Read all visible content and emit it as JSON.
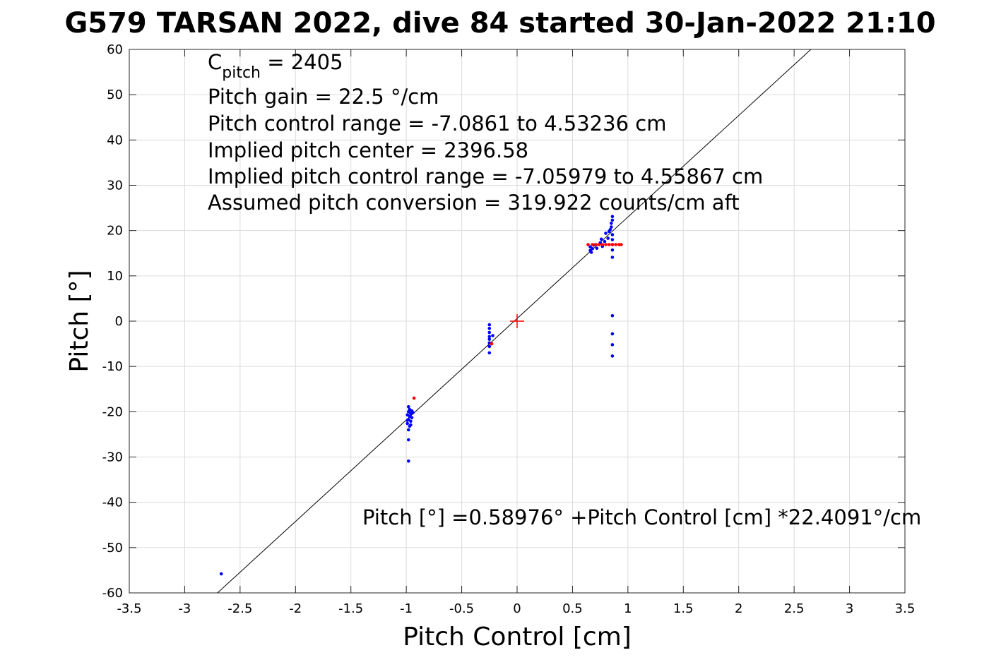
{
  "chart_data": {
    "type": "scatter",
    "title": "G579 TARSAN 2022, dive 84 started 30-Jan-2022 21:10",
    "xlabel": "Pitch Control [cm]",
    "ylabel": "Pitch [°]",
    "xlim": [
      -3.5,
      3.5
    ],
    "ylim": [
      -60,
      60
    ],
    "xticks": [
      -3.5,
      -3,
      -2.5,
      -2,
      -1.5,
      -1,
      -0.5,
      0,
      0.5,
      1,
      1.5,
      2,
      2.5,
      3,
      3.5
    ],
    "xtick_labels": [
      "-3.5",
      "-3",
      "-2.5",
      "-2",
      "-1.5",
      "-1",
      "-0.5",
      "0",
      "0.5",
      "1",
      "1.5",
      "2",
      "2.5",
      "3",
      "3.5"
    ],
    "yticks": [
      -60,
      -50,
      -40,
      -30,
      -20,
      -10,
      0,
      10,
      20,
      30,
      40,
      50,
      60
    ],
    "ytick_labels": [
      "-60",
      "-50",
      "-40",
      "-30",
      "-20",
      "-10",
      "0",
      "10",
      "20",
      "30",
      "40",
      "50",
      "60"
    ],
    "grid": true,
    "series": [
      {
        "color": "#0000ff",
        "marker": "dot",
        "points": [
          [
            -2.67,
            -55.8
          ],
          [
            -0.98,
            -30.9
          ],
          [
            -0.98,
            -26.2
          ],
          [
            -0.98,
            -24.0
          ],
          [
            -0.97,
            -23.2
          ],
          [
            -0.99,
            -22.6
          ],
          [
            -0.96,
            -22.1
          ],
          [
            -0.98,
            -21.7
          ],
          [
            -0.95,
            -21.3
          ],
          [
            -0.97,
            -21.0
          ],
          [
            -0.99,
            -20.7
          ],
          [
            -0.96,
            -20.4
          ],
          [
            -0.94,
            -20.2
          ],
          [
            -0.98,
            -20.0
          ],
          [
            -0.95,
            -19.8
          ],
          [
            -0.97,
            -19.5
          ],
          [
            -0.98,
            -18.9
          ],
          [
            -0.99,
            -21.9
          ],
          [
            -0.96,
            -22.9
          ],
          [
            -0.25,
            -7.0
          ],
          [
            -0.25,
            -5.6
          ],
          [
            -0.25,
            -4.8
          ],
          [
            -0.25,
            -4.0
          ],
          [
            -0.25,
            -3.4
          ],
          [
            -0.25,
            -2.5
          ],
          [
            -0.25,
            -1.6
          ],
          [
            -0.25,
            -0.8
          ],
          [
            -0.23,
            -5.0
          ],
          [
            -0.22,
            -3.2
          ],
          [
            0.67,
            15.2
          ],
          [
            0.66,
            15.6
          ],
          [
            0.68,
            16.0
          ],
          [
            0.66,
            16.4
          ],
          [
            0.69,
            16.8
          ],
          [
            0.72,
            16.1
          ],
          [
            0.75,
            17.3
          ],
          [
            0.76,
            18.1
          ],
          [
            0.77,
            16.5
          ],
          [
            0.79,
            17.6
          ],
          [
            0.8,
            19.4
          ],
          [
            0.82,
            18.3
          ],
          [
            0.83,
            19.8
          ],
          [
            0.84,
            20.2
          ],
          [
            0.85,
            20.8
          ],
          [
            0.85,
            21.6
          ],
          [
            0.86,
            22.3
          ],
          [
            0.86,
            23.1
          ],
          [
            0.86,
            19.1
          ],
          [
            0.86,
            18.0
          ],
          [
            0.86,
            16.9
          ],
          [
            0.86,
            15.7
          ],
          [
            0.86,
            14.1
          ],
          [
            0.86,
            1.2
          ],
          [
            0.86,
            -2.8
          ],
          [
            0.86,
            -5.2
          ],
          [
            0.86,
            -7.7
          ]
        ]
      },
      {
        "color": "#ff0000",
        "marker": "dot",
        "points": [
          [
            -0.93,
            -17.0
          ],
          [
            -0.23,
            -5.0
          ],
          [
            0.64,
            16.9
          ],
          [
            0.68,
            16.9
          ],
          [
            0.71,
            16.9
          ],
          [
            0.74,
            16.9
          ],
          [
            0.77,
            16.9
          ],
          [
            0.8,
            16.9
          ],
          [
            0.83,
            16.9
          ],
          [
            0.86,
            16.9
          ],
          [
            0.89,
            16.9
          ],
          [
            0.92,
            16.9
          ],
          [
            0.94,
            16.9
          ]
        ]
      }
    ],
    "center_marker": {
      "x": 0,
      "y": 0,
      "symbol": "+",
      "color": "#ff0000"
    },
    "fit_line": {
      "intercept": 0.58976,
      "slope": 22.4091,
      "color": "#000000"
    },
    "annotations": {
      "c_pitch_main": "C",
      "c_pitch_sub": "pitch",
      "c_pitch_value": " = 2405",
      "lines": [
        "Pitch gain = 22.5 °/cm",
        "Pitch control range = -7.0861 to 4.53236 cm",
        "Implied pitch center = 2396.58",
        "Implied pitch control range = -7.05979 to 4.55867 cm",
        "Assumed pitch conversion = 319.922 counts/cm aft"
      ],
      "fit_equation": "Pitch [°] =0.58976° +Pitch Control [cm] *22.4091°/cm"
    }
  }
}
